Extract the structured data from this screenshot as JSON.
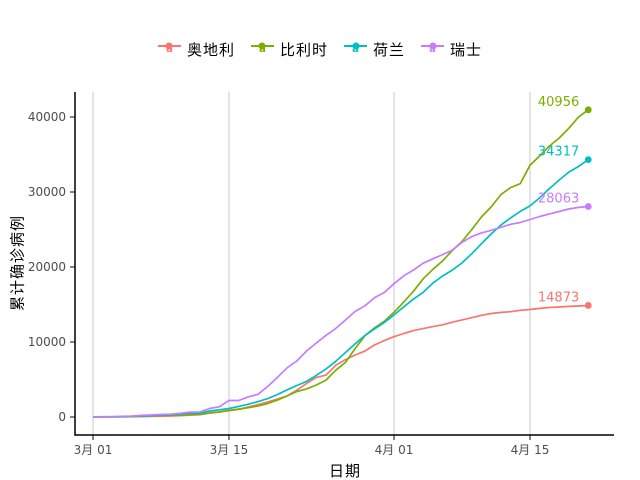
{
  "figure": {
    "background": "#ffffff",
    "axis_line_color": "#000000",
    "tick_mark_color": "#333333",
    "tick_label_color": "#4d4d4d",
    "gridline_color": "#c9c9c9"
  },
  "legend": {
    "key_glyph_letter": "a"
  },
  "chart_data": {
    "type": "line",
    "xlabel": "日期",
    "ylabel": "累计确诊病例",
    "grid": "vertical-only",
    "legend_position": "top-center",
    "x_unit": "day index from 2020-03-01",
    "n_days": 52,
    "x_ticks": [
      {
        "label": "3月 01",
        "day": 0
      },
      {
        "label": "3月 15",
        "day": 14
      },
      {
        "label": "4月 01",
        "day": 31
      },
      {
        "label": "4月 15",
        "day": 45
      }
    ],
    "y_ticks": [
      0,
      10000,
      20000,
      30000,
      40000
    ],
    "y_tick_labels": [
      "0",
      "10000",
      "20000",
      "30000",
      "40000"
    ],
    "ylim": [
      0,
      43300
    ],
    "series": [
      {
        "name": "奥地利",
        "color": "#F8766D",
        "end_label": "14873",
        "values": [
          14,
          18,
          21,
          29,
          41,
          55,
          79,
          104,
          131,
          182,
          246,
          302,
          504,
          655,
          860,
          1018,
          1332,
          1646,
          2013,
          2388,
          2814,
          3582,
          4474,
          5283,
          5588,
          6909,
          7657,
          8271,
          8788,
          9618,
          10180,
          10711,
          11129,
          11524,
          11781,
          12051,
          12297,
          12639,
          12942,
          13244,
          13555,
          13806,
          13945,
          14041,
          14226,
          14336,
          14476,
          14595,
          14671,
          14749,
          14795,
          14873
        ]
      },
      {
        "name": "比利时",
        "color": "#7CAE00",
        "end_label": "40956",
        "values": [
          2,
          8,
          13,
          23,
          50,
          109,
          169,
          200,
          239,
          267,
          314,
          314,
          559,
          689,
          886,
          1058,
          1243,
          1486,
          1795,
          2257,
          2815,
          3401,
          3743,
          4269,
          4937,
          6235,
          7284,
          9134,
          10836,
          11899,
          12775,
          13964,
          15348,
          16770,
          18431,
          19691,
          20814,
          22194,
          23403,
          24983,
          26667,
          28018,
          29647,
          30589,
          31119,
          33573,
          34809,
          36138,
          37183,
          38496,
          39983,
          40956
        ]
      },
      {
        "name": "荷兰",
        "color": "#00BFC4",
        "end_label": "34317",
        "values": [
          10,
          18,
          24,
          38,
          82,
          128,
          188,
          265,
          321,
          382,
          503,
          503,
          804,
          959,
          1135,
          1413,
          1705,
          2051,
          2460,
          2994,
          3631,
          4204,
          4749,
          5560,
          6412,
          7431,
          8603,
          9762,
          10866,
          11750,
          12595,
          13614,
          14697,
          15723,
          16627,
          17851,
          18803,
          19580,
          20549,
          21762,
          23097,
          24413,
          25587,
          26551,
          27419,
          28153,
          29214,
          30449,
          31589,
          32655,
          33405,
          34317
        ]
      },
      {
        "name": "瑞士",
        "color": "#C77CFF",
        "end_label": "28063",
        "values": [
          27,
          42,
          56,
          90,
          114,
          214,
          268,
          337,
          374,
          491,
          652,
          652,
          1139,
          1359,
          2200,
          2200,
          2700,
          3028,
          4075,
          5294,
          6575,
          7474,
          8795,
          9877,
          10897,
          11811,
          12928,
          14076,
          14829,
          15922,
          16605,
          17768,
          18827,
          19606,
          20505,
          21100,
          21657,
          22253,
          23280,
          24051,
          24551,
          24900,
          25300,
          25688,
          25936,
          26336,
          26732,
          27078,
          27404,
          27740,
          27944,
          28063
        ]
      }
    ]
  }
}
